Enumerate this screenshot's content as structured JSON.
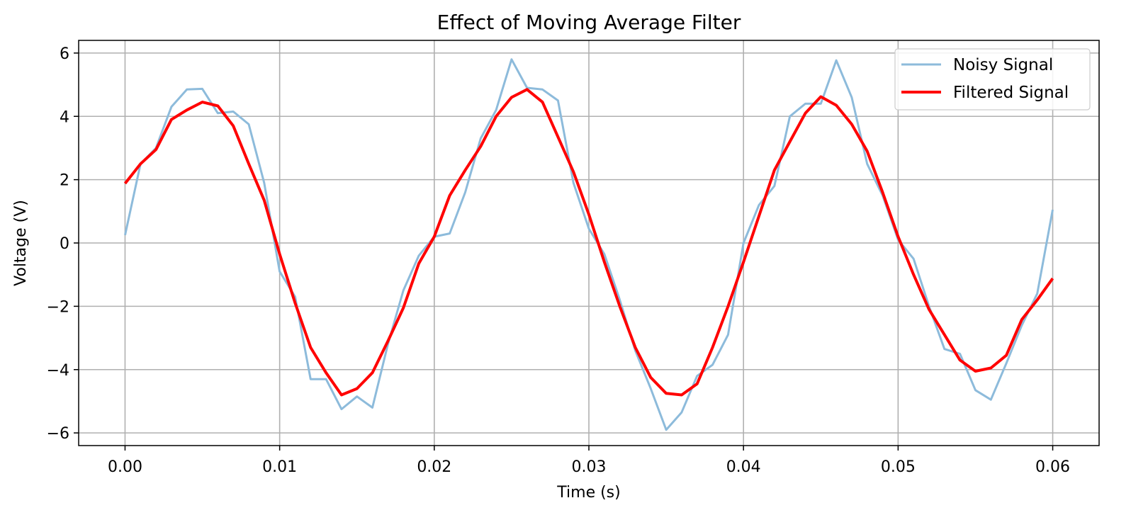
{
  "chart_data": {
    "type": "line",
    "title": "Effect of Moving Average Filter",
    "xlabel": "Time (s)",
    "ylabel": "Voltage (V)",
    "xlim": [
      -0.003,
      0.063
    ],
    "ylim": [
      -6.4,
      6.4
    ],
    "xticks": [
      0.0,
      0.01,
      0.02,
      0.03,
      0.04,
      0.05,
      0.06
    ],
    "xtick_labels": [
      "0.00",
      "0.01",
      "0.02",
      "0.03",
      "0.04",
      "0.05",
      "0.06"
    ],
    "yticks": [
      -6,
      -4,
      -2,
      0,
      2,
      4,
      6
    ],
    "ytick_labels": [
      "−6",
      "−4",
      "−2",
      "0",
      "2",
      "4",
      "6"
    ],
    "grid": true,
    "legend_position": "top-right",
    "x": [
      0.0,
      0.001,
      0.002,
      0.003,
      0.004,
      0.005,
      0.006,
      0.007,
      0.008,
      0.009,
      0.01,
      0.011,
      0.012,
      0.013,
      0.014,
      0.015,
      0.016,
      0.017,
      0.018,
      0.019,
      0.02,
      0.021,
      0.022,
      0.023,
      0.024,
      0.025,
      0.026,
      0.027,
      0.028,
      0.029,
      0.03,
      0.031,
      0.032,
      0.033,
      0.034,
      0.035,
      0.036,
      0.037,
      0.038,
      0.039,
      0.04,
      0.041,
      0.042,
      0.043,
      0.044,
      0.045,
      0.046,
      0.047,
      0.048,
      0.049,
      0.05,
      0.051,
      0.052,
      0.053,
      0.054,
      0.055,
      0.056,
      0.057,
      0.058,
      0.059,
      0.06
    ],
    "series": [
      {
        "name": "Noisy Signal",
        "color": "#8dbbdb",
        "values": [
          0.25,
          2.5,
          3.0,
          4.3,
          4.85,
          4.87,
          4.1,
          4.15,
          3.75,
          1.9,
          -0.9,
          -1.7,
          -4.3,
          -4.3,
          -5.25,
          -4.85,
          -5.2,
          -3.2,
          -1.5,
          -0.4,
          0.2,
          0.3,
          1.6,
          3.3,
          4.2,
          5.8,
          4.9,
          4.85,
          4.5,
          1.9,
          0.45,
          -0.35,
          -1.8,
          -3.4,
          -4.6,
          -5.9,
          -5.35,
          -4.2,
          -3.85,
          -2.9,
          0.0,
          1.2,
          1.8,
          4.0,
          4.4,
          4.4,
          5.77,
          4.6,
          2.5,
          1.5,
          0.1,
          -0.5,
          -2.0,
          -3.35,
          -3.5,
          -4.65,
          -4.95,
          -3.8,
          -2.6,
          -1.6,
          1.05
        ]
      },
      {
        "name": "Filtered Signal",
        "color": "#ff0000",
        "values": [
          1.88,
          2.5,
          2.95,
          3.9,
          4.2,
          4.45,
          4.33,
          3.7,
          2.5,
          1.35,
          -0.35,
          -1.9,
          -3.3,
          -4.1,
          -4.8,
          -4.6,
          -4.1,
          -3.1,
          -2.05,
          -0.65,
          0.2,
          1.5,
          2.3,
          3.05,
          4.0,
          4.6,
          4.85,
          4.45,
          3.35,
          2.25,
          0.9,
          -0.6,
          -2.0,
          -3.3,
          -4.25,
          -4.75,
          -4.8,
          -4.45,
          -3.3,
          -2.0,
          -0.6,
          0.85,
          2.3,
          3.2,
          4.1,
          4.62,
          4.35,
          3.75,
          2.9,
          1.6,
          0.2,
          -1.0,
          -2.1,
          -2.9,
          -3.7,
          -4.05,
          -3.95,
          -3.55,
          -2.42,
          -1.8,
          -1.12
        ]
      }
    ]
  }
}
